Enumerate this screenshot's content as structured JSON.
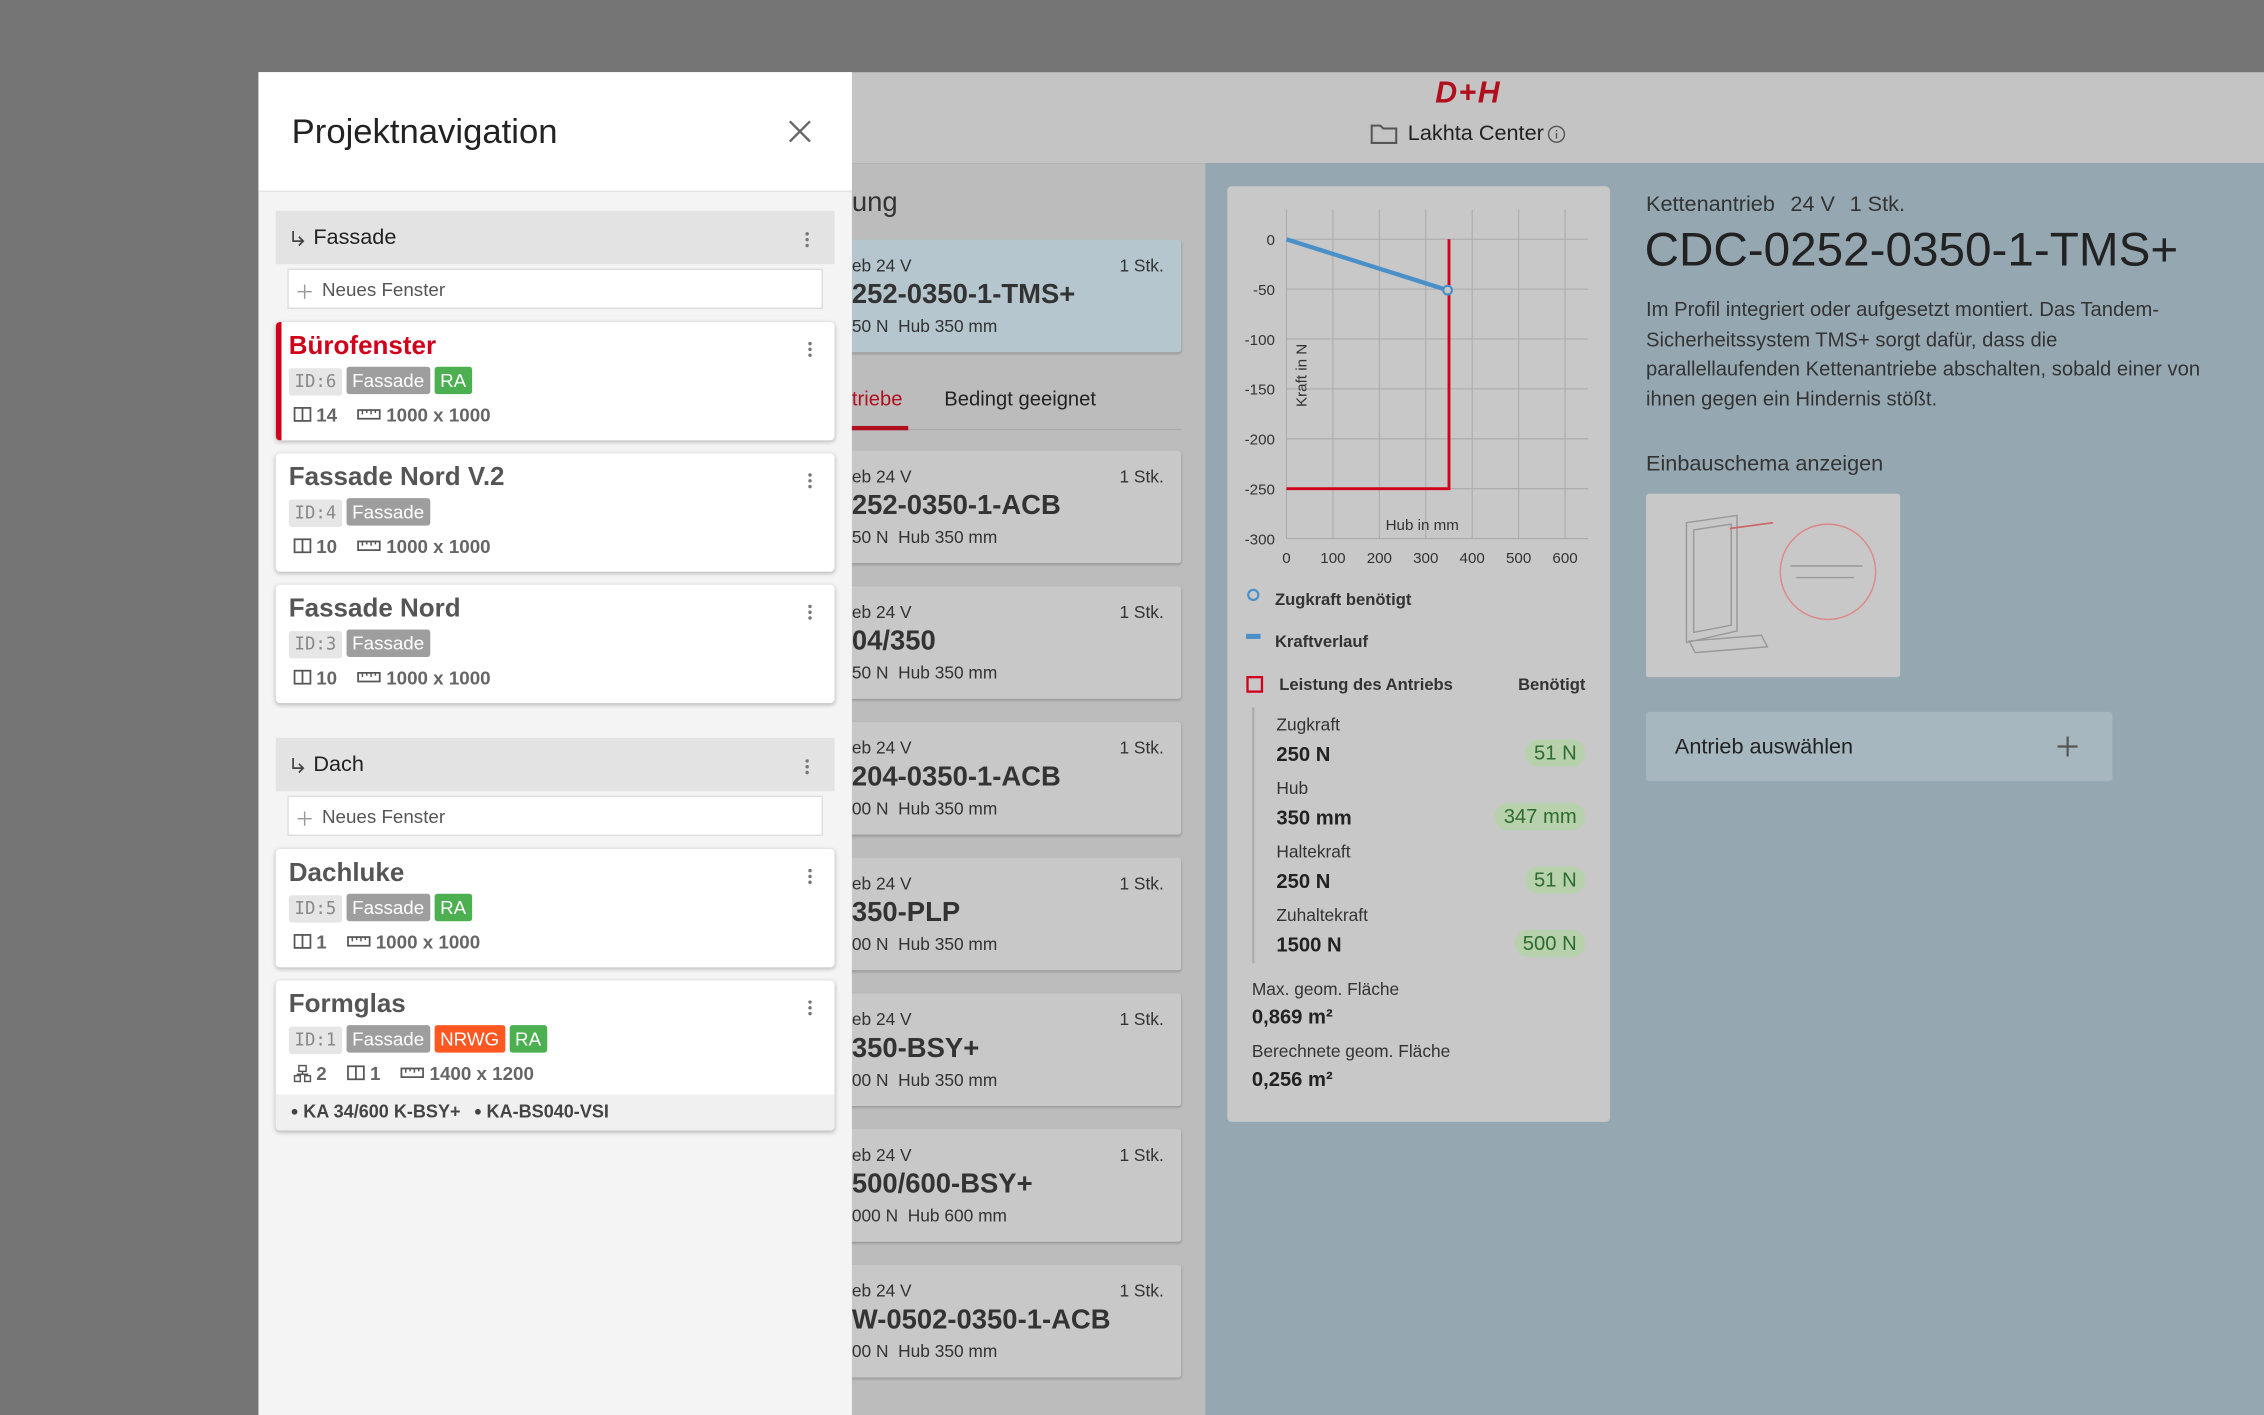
{
  "header": {
    "brand": "D+H",
    "project": "Lakhta Center"
  },
  "nav": {
    "title": "Projektnavigation",
    "groups": [
      {
        "name": "Fassade",
        "add": "Neues Fenster",
        "windows": [
          {
            "name": "Bürofenster",
            "active": true,
            "id": "ID:6",
            "tags": [
              {
                "text": "Fassade",
                "color": "#9e9e9e"
              },
              {
                "text": "RA",
                "color": "#4caf50"
              }
            ],
            "count": 14,
            "size": "1000 x 1000"
          },
          {
            "name": "Fassade Nord V.2",
            "id": "ID:4",
            "tags": [
              {
                "text": "Fassade",
                "color": "#9e9e9e"
              }
            ],
            "count": 10,
            "size": "1000 x 1000"
          },
          {
            "name": "Fassade Nord",
            "id": "ID:3",
            "tags": [
              {
                "text": "Fassade",
                "color": "#9e9e9e"
              }
            ],
            "count": 10,
            "size": "1000 x 1000"
          }
        ]
      },
      {
        "name": "Dach",
        "add": "Neues Fenster",
        "windows": [
          {
            "name": "Dachluke",
            "id": "ID:5",
            "tags": [
              {
                "text": "Fassade",
                "color": "#9e9e9e"
              },
              {
                "text": "RA",
                "color": "#4caf50"
              }
            ],
            "count": 1,
            "size": "1000 x 1000"
          },
          {
            "name": "Formglas",
            "id": "ID:1",
            "tags": [
              {
                "text": "Fassade",
                "color": "#9e9e9e"
              },
              {
                "text": "NRWG",
                "color": "#ff5722"
              },
              {
                "text": "RA",
                "color": "#4caf50"
              }
            ],
            "groups": 2,
            "count": 1,
            "size": "1400 x 1200",
            "drives": [
              "KA 34/600 K-BSY+",
              "KA-BS040-VSI"
            ]
          }
        ]
      }
    ]
  },
  "list": {
    "heading": "ung",
    "tabs": [
      "triebe",
      "Bedingt geeignet"
    ],
    "items": [
      {
        "type": "eb 24 V",
        "qty": "1 Stk.",
        "name": "252-0350-1-TMS+",
        "spec": "50 N  Hub 350 mm",
        "selected": true
      },
      {
        "type": "eb 24 V",
        "qty": "1 Stk.",
        "name": "252-0350-1-ACB",
        "spec": "50 N  Hub 350 mm"
      },
      {
        "type": "eb 24 V",
        "qty": "1 Stk.",
        "name": "04/350",
        "spec": "50 N  Hub 350 mm"
      },
      {
        "type": "eb 24 V",
        "qty": "1 Stk.",
        "name": "204-0350-1-ACB",
        "spec": "00 N  Hub 350 mm"
      },
      {
        "type": "eb 24 V",
        "qty": "1 Stk.",
        "name": "350-PLP",
        "spec": "00 N  Hub 350 mm"
      },
      {
        "type": "eb 24 V",
        "qty": "1 Stk.",
        "name": "350-BSY+",
        "spec": "00 N  Hub 350 mm"
      },
      {
        "type": "eb 24 V",
        "qty": "1 Stk.",
        "name": "500/600-BSY+",
        "spec": "000 N  Hub 600 mm"
      },
      {
        "type": "eb 24 V",
        "qty": "1 Stk.",
        "name": "W-0502-0350-1-ACB",
        "spec": "00 N  Hub 350 mm"
      }
    ]
  },
  "detail": {
    "kind": "Kettenantrieb",
    "voltage": "24 V",
    "qty": "1 Stk.",
    "title": "CDC-0252-0350-1-TMS+",
    "description": "Im Profil integriert oder aufgesetzt montiert. Das Tandem-Sicherheitssystem TMS+ sorgt dafür, dass die parallellaufenden Kettenantriebe abschalten, sobald einer von ihnen gegen ein Hindernis stößt.",
    "schema": "Einbauschema anzeigen",
    "select": "Antrieb auswählen",
    "chart": {
      "type": "line",
      "xlabel": "Hub in mm",
      "ylabel": "Kraft in N",
      "xlim": [
        0,
        650
      ],
      "ylim": [
        -300,
        30
      ],
      "xticks": [
        0,
        100,
        200,
        300,
        400,
        500,
        600
      ],
      "yticks": [
        0,
        -50,
        -100,
        -150,
        -200,
        -250,
        -300
      ],
      "grid": true,
      "series": [
        {
          "name": "Kraftverlauf",
          "color": "#4a90c8",
          "x": [
            0,
            347
          ],
          "y": [
            0,
            -51
          ]
        }
      ],
      "required": {
        "name": "Zugkraft benötigt",
        "x": 347,
        "y": -51,
        "color": "#4a90c8"
      },
      "drive": {
        "name": "Leistung des Antriebs",
        "hub": 350,
        "force": -250,
        "color": "#d0021b"
      },
      "needed": "Benötigt",
      "rows": [
        {
          "label": "Zugkraft",
          "value": "250 N",
          "needed": "51 N"
        },
        {
          "label": "Hub",
          "value": "350 mm",
          "needed": "347 mm"
        },
        {
          "label": "Haltekraft",
          "value": "250 N",
          "needed": "51 N"
        },
        {
          "label": "Zuhaltekraft",
          "value": "1500 N",
          "needed": "500 N"
        }
      ],
      "areas": [
        {
          "label": "Max. geom. Fläche",
          "value": "0,869 m²"
        },
        {
          "label": "Berechnete geom. Fläche",
          "value": "0,256 m²"
        }
      ]
    }
  }
}
